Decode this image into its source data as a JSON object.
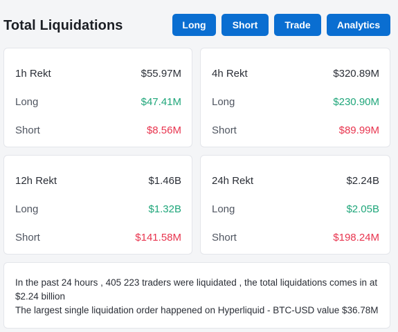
{
  "header": {
    "title": "Total Liquidations",
    "buttons": {
      "long": "Long",
      "short": "Short",
      "trade": "Trade",
      "analytics": "Analytics"
    }
  },
  "cards": [
    {
      "period": "1h Rekt",
      "total": "$55.97M",
      "long_label": "Long",
      "long": "$47.41M",
      "short_label": "Short",
      "short": "$8.56M"
    },
    {
      "period": "4h Rekt",
      "total": "$320.89M",
      "long_label": "Long",
      "long": "$230.90M",
      "short_label": "Short",
      "short": "$89.99M"
    },
    {
      "period": "12h Rekt",
      "total": "$1.46B",
      "long_label": "Long",
      "long": "$1.32B",
      "short_label": "Short",
      "short": "$141.58M"
    },
    {
      "period": "24h Rekt",
      "total": "$2.24B",
      "long_label": "Long",
      "long": "$2.05B",
      "short_label": "Short",
      "short": "$198.24M"
    }
  ],
  "summary": {
    "line1": "In the past 24 hours , 405 223 traders were liquidated , the total liquidations comes in at $2.24 billion",
    "line2": "The largest single liquidation order happened on Hyperliquid - BTC-USD value $36.78M"
  },
  "colors": {
    "accent": "#0a6ed1",
    "long_green": "#1fa67a",
    "short_red": "#e8344e"
  }
}
